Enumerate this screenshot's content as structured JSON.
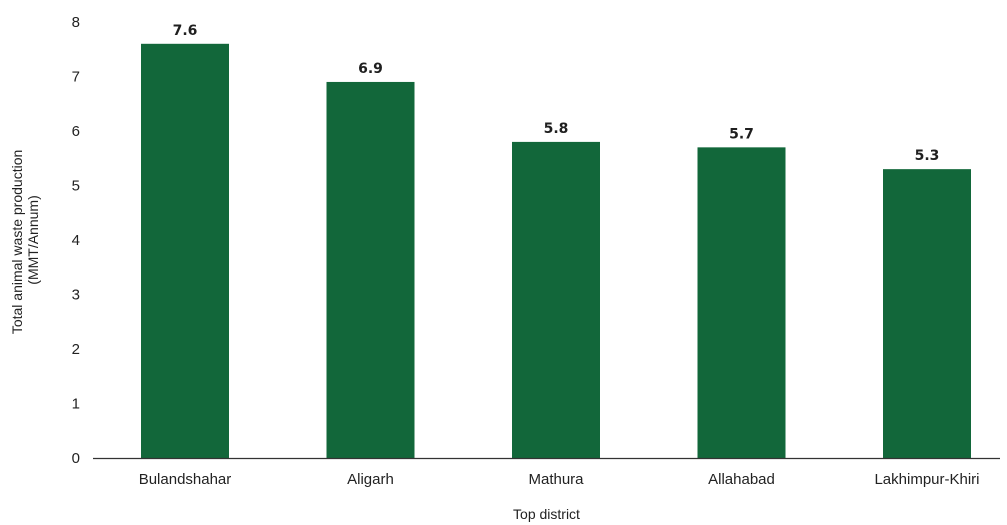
{
  "chart_data": {
    "type": "bar",
    "categories": [
      "Bulandshahar",
      "Aligarh",
      "Mathura",
      "Allahabad",
      "Lakhimpur-Khiri"
    ],
    "values": [
      7.6,
      6.9,
      5.8,
      5.7,
      5.3
    ],
    "data_labels": [
      "7.6",
      "6.9",
      "5.8",
      "5.7",
      "5.3"
    ],
    "title": "",
    "xlabel": "Top district",
    "ylabel_lines": [
      "Total animal waste production",
      "(MMT/Annum)"
    ],
    "ylim": [
      0,
      8
    ],
    "yticks": [
      0,
      1,
      2,
      3,
      4,
      5,
      6,
      7,
      8
    ],
    "grid": false,
    "legend": "none",
    "bar_color": "#12673a",
    "axis_color": "#333333"
  }
}
